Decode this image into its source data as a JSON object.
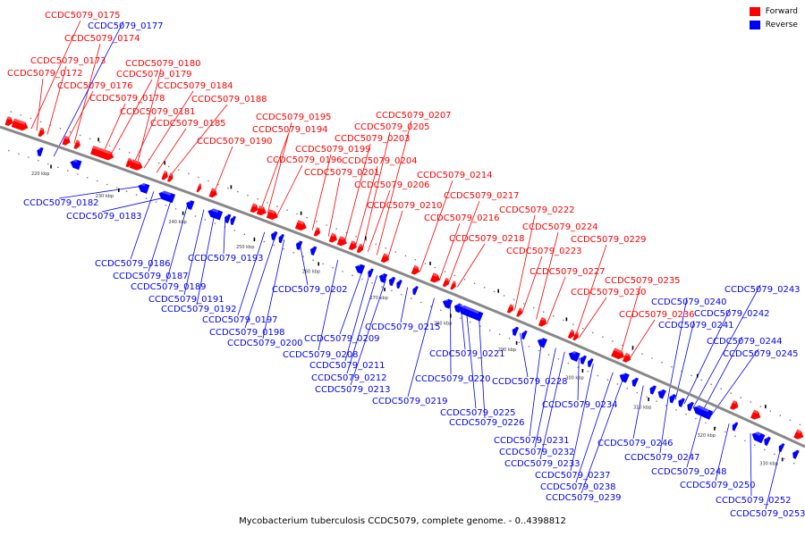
{
  "colors": {
    "forward": "#ff0000",
    "reverse": "#0000ff",
    "backbone": "#888888"
  },
  "legend": {
    "forward": "Forward",
    "reverse": "Reverse"
  },
  "caption": "Mycobacterium tuberculosis CCDC5079, complete genome. - 0..4398812",
  "ticks": [
    "220 kbp",
    "230 kbp",
    "240 kbp",
    "250 kbp",
    "260 kbp",
    "270 kbp",
    "280 kbp",
    "290 kbp",
    "300 kbp",
    "310 kbp",
    "320 kbp",
    "330 kbp"
  ],
  "forward_labels": [
    "CCDC5079_0172",
    "CCDC5079_0173",
    "CCDC5079_0174",
    "CCDC5079_0175",
    "CCDC5079_0176",
    "CCDC5079_0178",
    "CCDC5079_0179",
    "CCDC5079_0180",
    "CCDC5079_0181",
    "CCDC5079_0184",
    "CCDC5079_0185",
    "CCDC5079_0188",
    "CCDC5079_0190",
    "CCDC5079_0194",
    "CCDC5079_0195",
    "CCDC5079_0196",
    "CCDC5079_0199",
    "CCDC5079_0201",
    "CCDC5079_0203",
    "CCDC5079_0204",
    "CCDC5079_0205",
    "CCDC5079_0206",
    "CCDC5079_0207",
    "CCDC5079_0210",
    "CCDC5079_0214",
    "CCDC5079_0216",
    "CCDC5079_0217",
    "CCDC5079_0218",
    "CCDC5079_0222",
    "CCDC5079_0223",
    "CCDC5079_0224",
    "CCDC5079_0227",
    "CCDC5079_0229",
    "CCDC5079_0230",
    "CCDC5079_0235",
    "CCDC5079_0236"
  ],
  "reverse_labels": [
    "CCDC5079_0177",
    "CCDC5079_0182",
    "CCDC5079_0183",
    "CCDC5079_0186",
    "CCDC5079_0187",
    "CCDC5079_0189",
    "CCDC5079_0191",
    "CCDC5079_0192",
    "CCDC5079_0193",
    "CCDC5079_0197",
    "CCDC5079_0198",
    "CCDC5079_0200",
    "CCDC5079_0202",
    "CCDC5079_0208",
    "CCDC5079_0209",
    "CCDC5079_0211",
    "CCDC5079_0212",
    "CCDC5079_0213",
    "CCDC5079_0215",
    "CCDC5079_0219",
    "CCDC5079_0220",
    "CCDC5079_0221",
    "CCDC5079_0225",
    "CCDC5079_0226",
    "CCDC5079_0228",
    "CCDC5079_0231",
    "CCDC5079_0232",
    "CCDC5079_0233",
    "CCDC5079_0234",
    "CCDC5079_0237",
    "CCDC5079_0238",
    "CCDC5079_0239",
    "CCDC5079_0240",
    "CCDC5079_0241",
    "CCDC5079_0242",
    "CCDC5079_0243",
    "CCDC5079_0244",
    "CCDC5079_0245",
    "CCDC5079_0246",
    "CCDC5079_0247",
    "CCDC5079_0248",
    "CCDC5079_0250",
    "CCDC5079_0252",
    "CCDC5079_0253"
  ]
}
